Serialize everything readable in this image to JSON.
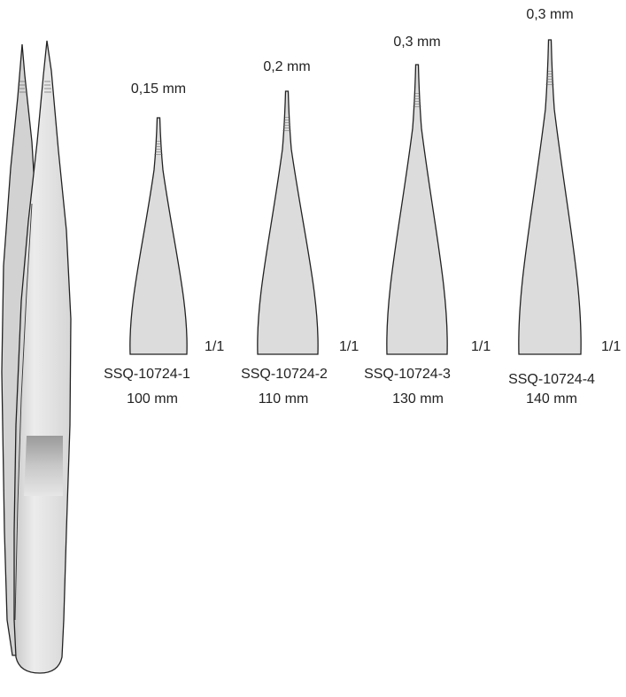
{
  "instruments": [
    {
      "tip_width": "0,15 mm",
      "scale": "1/1",
      "code": "SSQ-10724-1",
      "length": "100 mm"
    },
    {
      "tip_width": "0,2 mm",
      "scale": "1/1",
      "code": "SSQ-10724-2",
      "length": "110 mm"
    },
    {
      "tip_width": "0,3 mm",
      "scale": "1/1",
      "code": "SSQ-10724-3",
      "length": "130 mm"
    },
    {
      "tip_width": "0,3 mm",
      "scale": "1/1",
      "code": "SSQ-10724-4",
      "length": "140 mm"
    }
  ],
  "colors": {
    "steel_fill": "#dcdcdc",
    "outline": "#222222",
    "grip_band": "#a8a8a8"
  }
}
